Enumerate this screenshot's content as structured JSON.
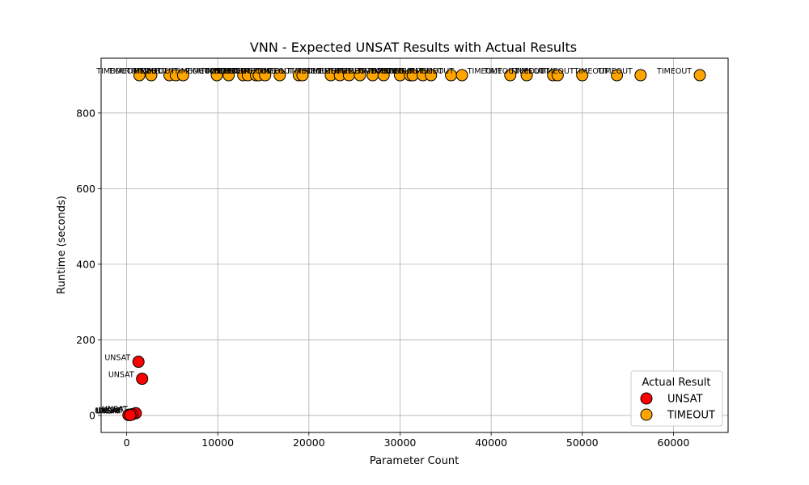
{
  "chart_data": {
    "type": "scatter",
    "title": "VNN - Expected UNSAT Results with Actual Results",
    "xlabel": "Parameter Count",
    "ylabel": "Runtime (seconds)",
    "xlim": [
      -2800,
      66000
    ],
    "ylim": [
      -45,
      945
    ],
    "xticks": [
      0,
      10000,
      20000,
      30000,
      40000,
      50000,
      60000
    ],
    "yticks": [
      0,
      200,
      400,
      600,
      800
    ],
    "grid": true,
    "legend": {
      "title": "Actual Result",
      "placement": "bottom-right"
    },
    "series": [
      {
        "name": "UNSAT",
        "color": "#ff0000",
        "label": "UNSAT",
        "points": [
          {
            "x": 1300,
            "y": 142
          },
          {
            "x": 1700,
            "y": 97
          },
          {
            "x": 1000,
            "y": 6
          },
          {
            "x": 600,
            "y": 3
          },
          {
            "x": 300,
            "y": 2
          },
          {
            "x": 200,
            "y": 1
          },
          {
            "x": 400,
            "y": 1
          }
        ]
      },
      {
        "name": "TIMEOUT",
        "color": "#ffa500",
        "label": "TIMEOUT",
        "points": [
          {
            "x": 1400,
            "y": 900
          },
          {
            "x": 2700,
            "y": 900
          },
          {
            "x": 4700,
            "y": 900
          },
          {
            "x": 5400,
            "y": 900
          },
          {
            "x": 6200,
            "y": 900
          },
          {
            "x": 9900,
            "y": 900
          },
          {
            "x": 11200,
            "y": 900
          },
          {
            "x": 12800,
            "y": 900
          },
          {
            "x": 13300,
            "y": 900
          },
          {
            "x": 14200,
            "y": 900
          },
          {
            "x": 14500,
            "y": 900
          },
          {
            "x": 15200,
            "y": 900
          },
          {
            "x": 16800,
            "y": 900
          },
          {
            "x": 18900,
            "y": 900
          },
          {
            "x": 19300,
            "y": 900
          },
          {
            "x": 22400,
            "y": 900
          },
          {
            "x": 23400,
            "y": 900
          },
          {
            "x": 24400,
            "y": 900
          },
          {
            "x": 25600,
            "y": 900
          },
          {
            "x": 27000,
            "y": 900
          },
          {
            "x": 28200,
            "y": 900
          },
          {
            "x": 30000,
            "y": 900
          },
          {
            "x": 31100,
            "y": 900
          },
          {
            "x": 31400,
            "y": 900
          },
          {
            "x": 32500,
            "y": 900
          },
          {
            "x": 33400,
            "y": 900
          },
          {
            "x": 35600,
            "y": 900
          },
          {
            "x": 36800,
            "y": 900
          },
          {
            "x": 42100,
            "y": 900
          },
          {
            "x": 43900,
            "y": 900
          },
          {
            "x": 46800,
            "y": 900
          },
          {
            "x": 47300,
            "y": 900
          },
          {
            "x": 50000,
            "y": 900
          },
          {
            "x": 53800,
            "y": 900
          },
          {
            "x": 56400,
            "y": 900
          },
          {
            "x": 62900,
            "y": 900
          }
        ]
      }
    ]
  }
}
